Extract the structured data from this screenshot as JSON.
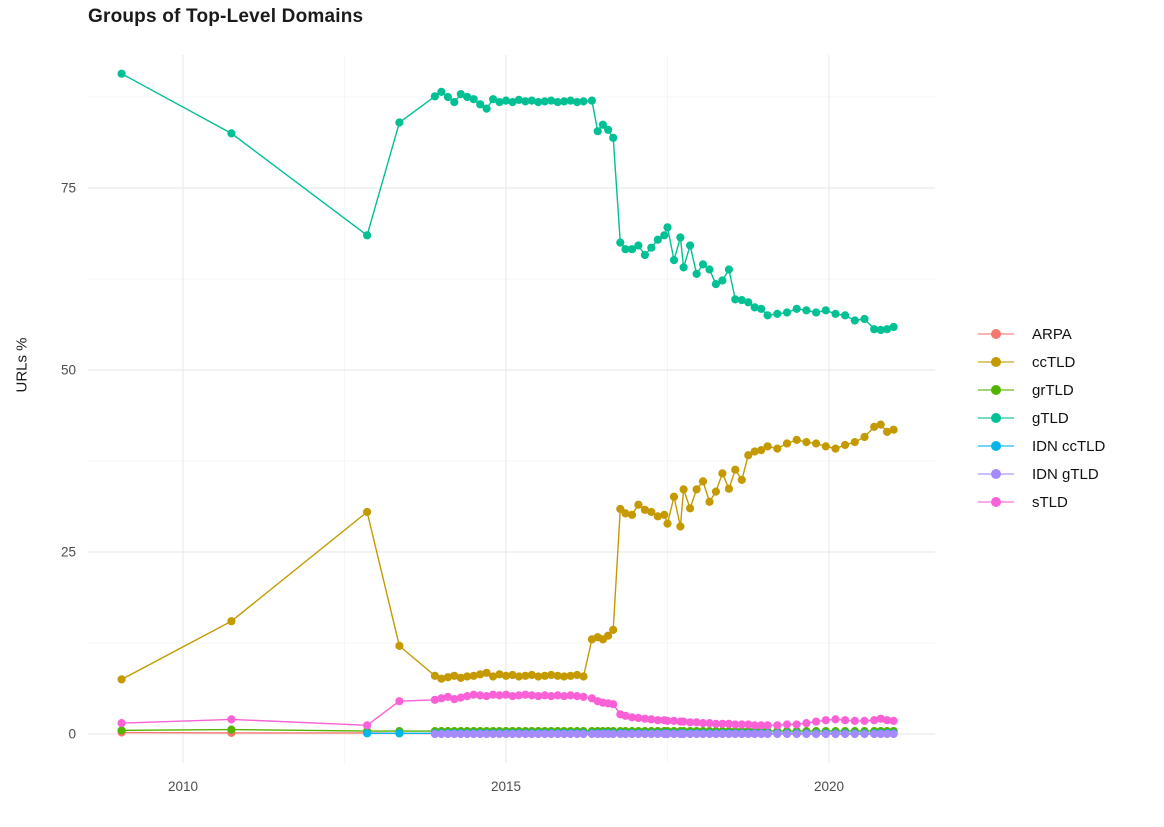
{
  "chart_data": {
    "type": "line",
    "title": "Groups of Top-Level Domains",
    "xlabel": "",
    "ylabel": "URLs %",
    "grid": true,
    "legend_position": "right",
    "xlim": [
      2008.5,
      2021.6
    ],
    "ylim": [
      -4,
      93
    ],
    "x_ticks": [
      2010,
      2015,
      2020
    ],
    "x_tick_labels": [
      "2010",
      "2015",
      "2020"
    ],
    "y_ticks": [
      0,
      25,
      50,
      75
    ],
    "y_tick_labels": [
      "0",
      "25",
      "50",
      "75"
    ],
    "colors": {
      "grid_major": "#ebebeb",
      "grid_minor": "#f3f3f3",
      "axis_text": "#4d4d4d",
      "title_text": "#1a1a1a"
    },
    "x": [
      2009.05,
      2010.75,
      2012.85,
      2013.35,
      2013.9,
      2014.0,
      2014.1,
      2014.2,
      2014.3,
      2014.4,
      2014.5,
      2014.6,
      2014.7,
      2014.8,
      2014.9,
      2015.0,
      2015.1,
      2015.2,
      2015.3,
      2015.4,
      2015.5,
      2015.6,
      2015.7,
      2015.8,
      2015.9,
      2016.0,
      2016.1,
      2016.2,
      2016.33,
      2016.42,
      2016.5,
      2016.58,
      2016.66,
      2016.77,
      2016.85,
      2016.95,
      2017.05,
      2017.15,
      2017.25,
      2017.35,
      2017.45,
      2017.5,
      2017.6,
      2017.7,
      2017.75,
      2017.85,
      2017.95,
      2018.05,
      2018.15,
      2018.25,
      2018.35,
      2018.45,
      2018.55,
      2018.65,
      2018.75,
      2018.85,
      2018.95,
      2019.05,
      2019.2,
      2019.35,
      2019.5,
      2019.65,
      2019.8,
      2019.95,
      2020.1,
      2020.25,
      2020.4,
      2020.55,
      2020.7,
      2020.8,
      2020.9,
      2021.0
    ],
    "series": [
      {
        "name": "ARPA",
        "color": "#F8766D",
        "y": [
          0.2,
          0.15,
          0.15,
          0.1,
          0.05,
          0.05,
          0.05,
          0.05,
          0.05,
          0.05,
          0.05,
          0.05,
          0.05,
          0.05,
          0.05,
          0.05,
          0.05,
          0.05,
          0.05,
          0.05,
          0.05,
          0.05,
          0.05,
          0.05,
          0.05,
          0.05,
          0.05,
          0.05,
          0.05,
          0.05,
          0.05,
          0.05,
          0.05,
          0.05,
          0.05,
          0.05,
          0.05,
          0.05,
          0.05,
          0.05,
          0.05,
          0.05,
          0.05,
          0.05,
          0.05,
          0.05,
          0.05,
          0.05,
          0.05,
          0.05,
          0.05,
          0.05,
          0.05,
          0.05,
          0.05,
          0.05,
          0.05,
          0.05,
          0.05,
          0.05,
          0.05,
          0.05,
          0.05,
          0.05,
          0.05,
          0.05,
          0.05,
          0.05,
          0.05,
          0.05,
          0.05,
          0.05
        ]
      },
      {
        "name": "ccTLD",
        "color": "#C49A00",
        "y": [
          7.5,
          15.5,
          30.5,
          12.1,
          8.0,
          7.6,
          7.8,
          8.0,
          7.7,
          7.9,
          8.0,
          8.2,
          8.4,
          7.9,
          8.2,
          8.0,
          8.1,
          7.9,
          8.0,
          8.1,
          7.9,
          8.0,
          8.1,
          8.0,
          7.9,
          8.0,
          8.1,
          7.9,
          13.0,
          13.3,
          13.0,
          13.5,
          14.3,
          30.9,
          30.3,
          30.1,
          31.5,
          30.8,
          30.5,
          29.9,
          30.1,
          28.9,
          32.6,
          28.5,
          33.6,
          31.0,
          33.6,
          34.7,
          31.9,
          33.3,
          35.8,
          33.7,
          36.3,
          34.9,
          38.3,
          38.8,
          39.0,
          39.5,
          39.2,
          39.9,
          40.4,
          40.1,
          39.9,
          39.5,
          39.2,
          39.7,
          40.1,
          40.8,
          42.2,
          42.5,
          41.5,
          41.8
        ]
      },
      {
        "name": "grTLD",
        "color": "#53B400",
        "y": [
          0.5,
          0.6,
          0.4,
          0.4,
          0.4,
          0.4,
          0.4,
          0.4,
          0.4,
          0.4,
          0.4,
          0.4,
          0.4,
          0.4,
          0.4,
          0.4,
          0.4,
          0.4,
          0.4,
          0.4,
          0.4,
          0.4,
          0.4,
          0.4,
          0.4,
          0.4,
          0.4,
          0.4,
          0.4,
          0.4,
          0.4,
          0.4,
          0.4,
          0.4,
          0.4,
          0.4,
          0.4,
          0.4,
          0.4,
          0.4,
          0.4,
          0.4,
          0.4,
          0.4,
          0.4,
          0.4,
          0.4,
          0.4,
          0.4,
          0.4,
          0.4,
          0.4,
          0.4,
          0.4,
          0.4,
          0.4,
          0.4,
          0.4,
          0.4,
          0.4,
          0.4,
          0.4,
          0.4,
          0.4,
          0.4,
          0.4,
          0.4,
          0.4,
          0.4,
          0.4,
          0.4,
          0.4
        ]
      },
      {
        "name": "gTLD",
        "color": "#00C094",
        "y": [
          90.7,
          82.5,
          68.5,
          84.0,
          87.6,
          88.2,
          87.5,
          86.8,
          87.9,
          87.5,
          87.2,
          86.5,
          85.9,
          87.2,
          86.8,
          87.0,
          86.8,
          87.1,
          86.9,
          87.0,
          86.8,
          86.9,
          87.0,
          86.8,
          86.9,
          87.0,
          86.8,
          86.9,
          87.0,
          82.8,
          83.7,
          83.0,
          81.9,
          67.5,
          66.6,
          66.6,
          67.1,
          65.8,
          66.8,
          67.9,
          68.5,
          69.6,
          65.1,
          68.2,
          64.1,
          67.1,
          63.2,
          64.5,
          63.8,
          61.8,
          62.3,
          63.8,
          59.7,
          59.6,
          59.3,
          58.6,
          58.4,
          57.5,
          57.7,
          57.9,
          58.4,
          58.2,
          57.9,
          58.2,
          57.7,
          57.5,
          56.8,
          57.0,
          55.6,
          55.5,
          55.6,
          55.9
        ]
      },
      {
        "name": "IDN ccTLD",
        "color": "#00B6EB",
        "y": [
          null,
          null,
          0.1,
          0.1,
          0.1,
          0.1,
          0.1,
          0.1,
          0.1,
          0.1,
          0.1,
          0.1,
          0.1,
          0.1,
          0.1,
          0.1,
          0.1,
          0.1,
          0.1,
          0.1,
          0.1,
          0.1,
          0.1,
          0.1,
          0.1,
          0.1,
          0.1,
          0.1,
          0.1,
          0.1,
          0.1,
          0.1,
          0.1,
          0.1,
          0.1,
          0.1,
          0.1,
          0.1,
          0.1,
          0.1,
          0.1,
          0.1,
          0.1,
          0.1,
          0.1,
          0.1,
          0.1,
          0.1,
          0.1,
          0.1,
          0.1,
          0.1,
          0.1,
          0.1,
          0.1,
          0.1,
          0.1,
          0.1,
          0.1,
          0.1,
          0.1,
          0.1,
          0.1,
          0.1,
          0.1,
          0.1,
          0.1,
          0.1,
          0.1,
          0.1,
          0.1,
          0.1
        ]
      },
      {
        "name": "IDN gTLD",
        "color": "#A58AFF",
        "y": [
          null,
          null,
          null,
          null,
          0,
          0,
          0,
          0,
          0,
          0,
          0,
          0,
          0,
          0,
          0,
          0,
          0,
          0,
          0,
          0,
          0,
          0,
          0,
          0,
          0,
          0,
          0,
          0,
          0,
          0,
          0,
          0,
          0,
          0,
          0,
          0,
          0,
          0,
          0,
          0,
          0,
          0,
          0,
          0,
          0,
          0,
          0,
          0,
          0,
          0,
          0,
          0,
          0,
          0,
          0,
          0,
          0,
          0,
          0,
          0,
          0,
          0,
          0,
          0,
          0,
          0,
          0,
          0,
          0,
          0,
          0,
          0
        ]
      },
      {
        "name": "sTLD",
        "color": "#FB61D7",
        "y": [
          1.5,
          2.0,
          1.2,
          4.5,
          4.7,
          4.9,
          5.1,
          4.8,
          5.0,
          5.2,
          5.4,
          5.3,
          5.2,
          5.4,
          5.3,
          5.4,
          5.2,
          5.3,
          5.4,
          5.3,
          5.2,
          5.3,
          5.2,
          5.3,
          5.2,
          5.3,
          5.2,
          5.1,
          4.9,
          4.5,
          4.3,
          4.2,
          4.1,
          2.7,
          2.5,
          2.3,
          2.2,
          2.1,
          2.0,
          1.9,
          1.9,
          1.8,
          1.8,
          1.7,
          1.7,
          1.6,
          1.6,
          1.5,
          1.5,
          1.4,
          1.4,
          1.4,
          1.3,
          1.3,
          1.3,
          1.2,
          1.2,
          1.2,
          1.2,
          1.3,
          1.3,
          1.5,
          1.7,
          1.9,
          2.0,
          1.9,
          1.8,
          1.8,
          1.9,
          2.1,
          1.9,
          1.8
        ]
      }
    ]
  }
}
